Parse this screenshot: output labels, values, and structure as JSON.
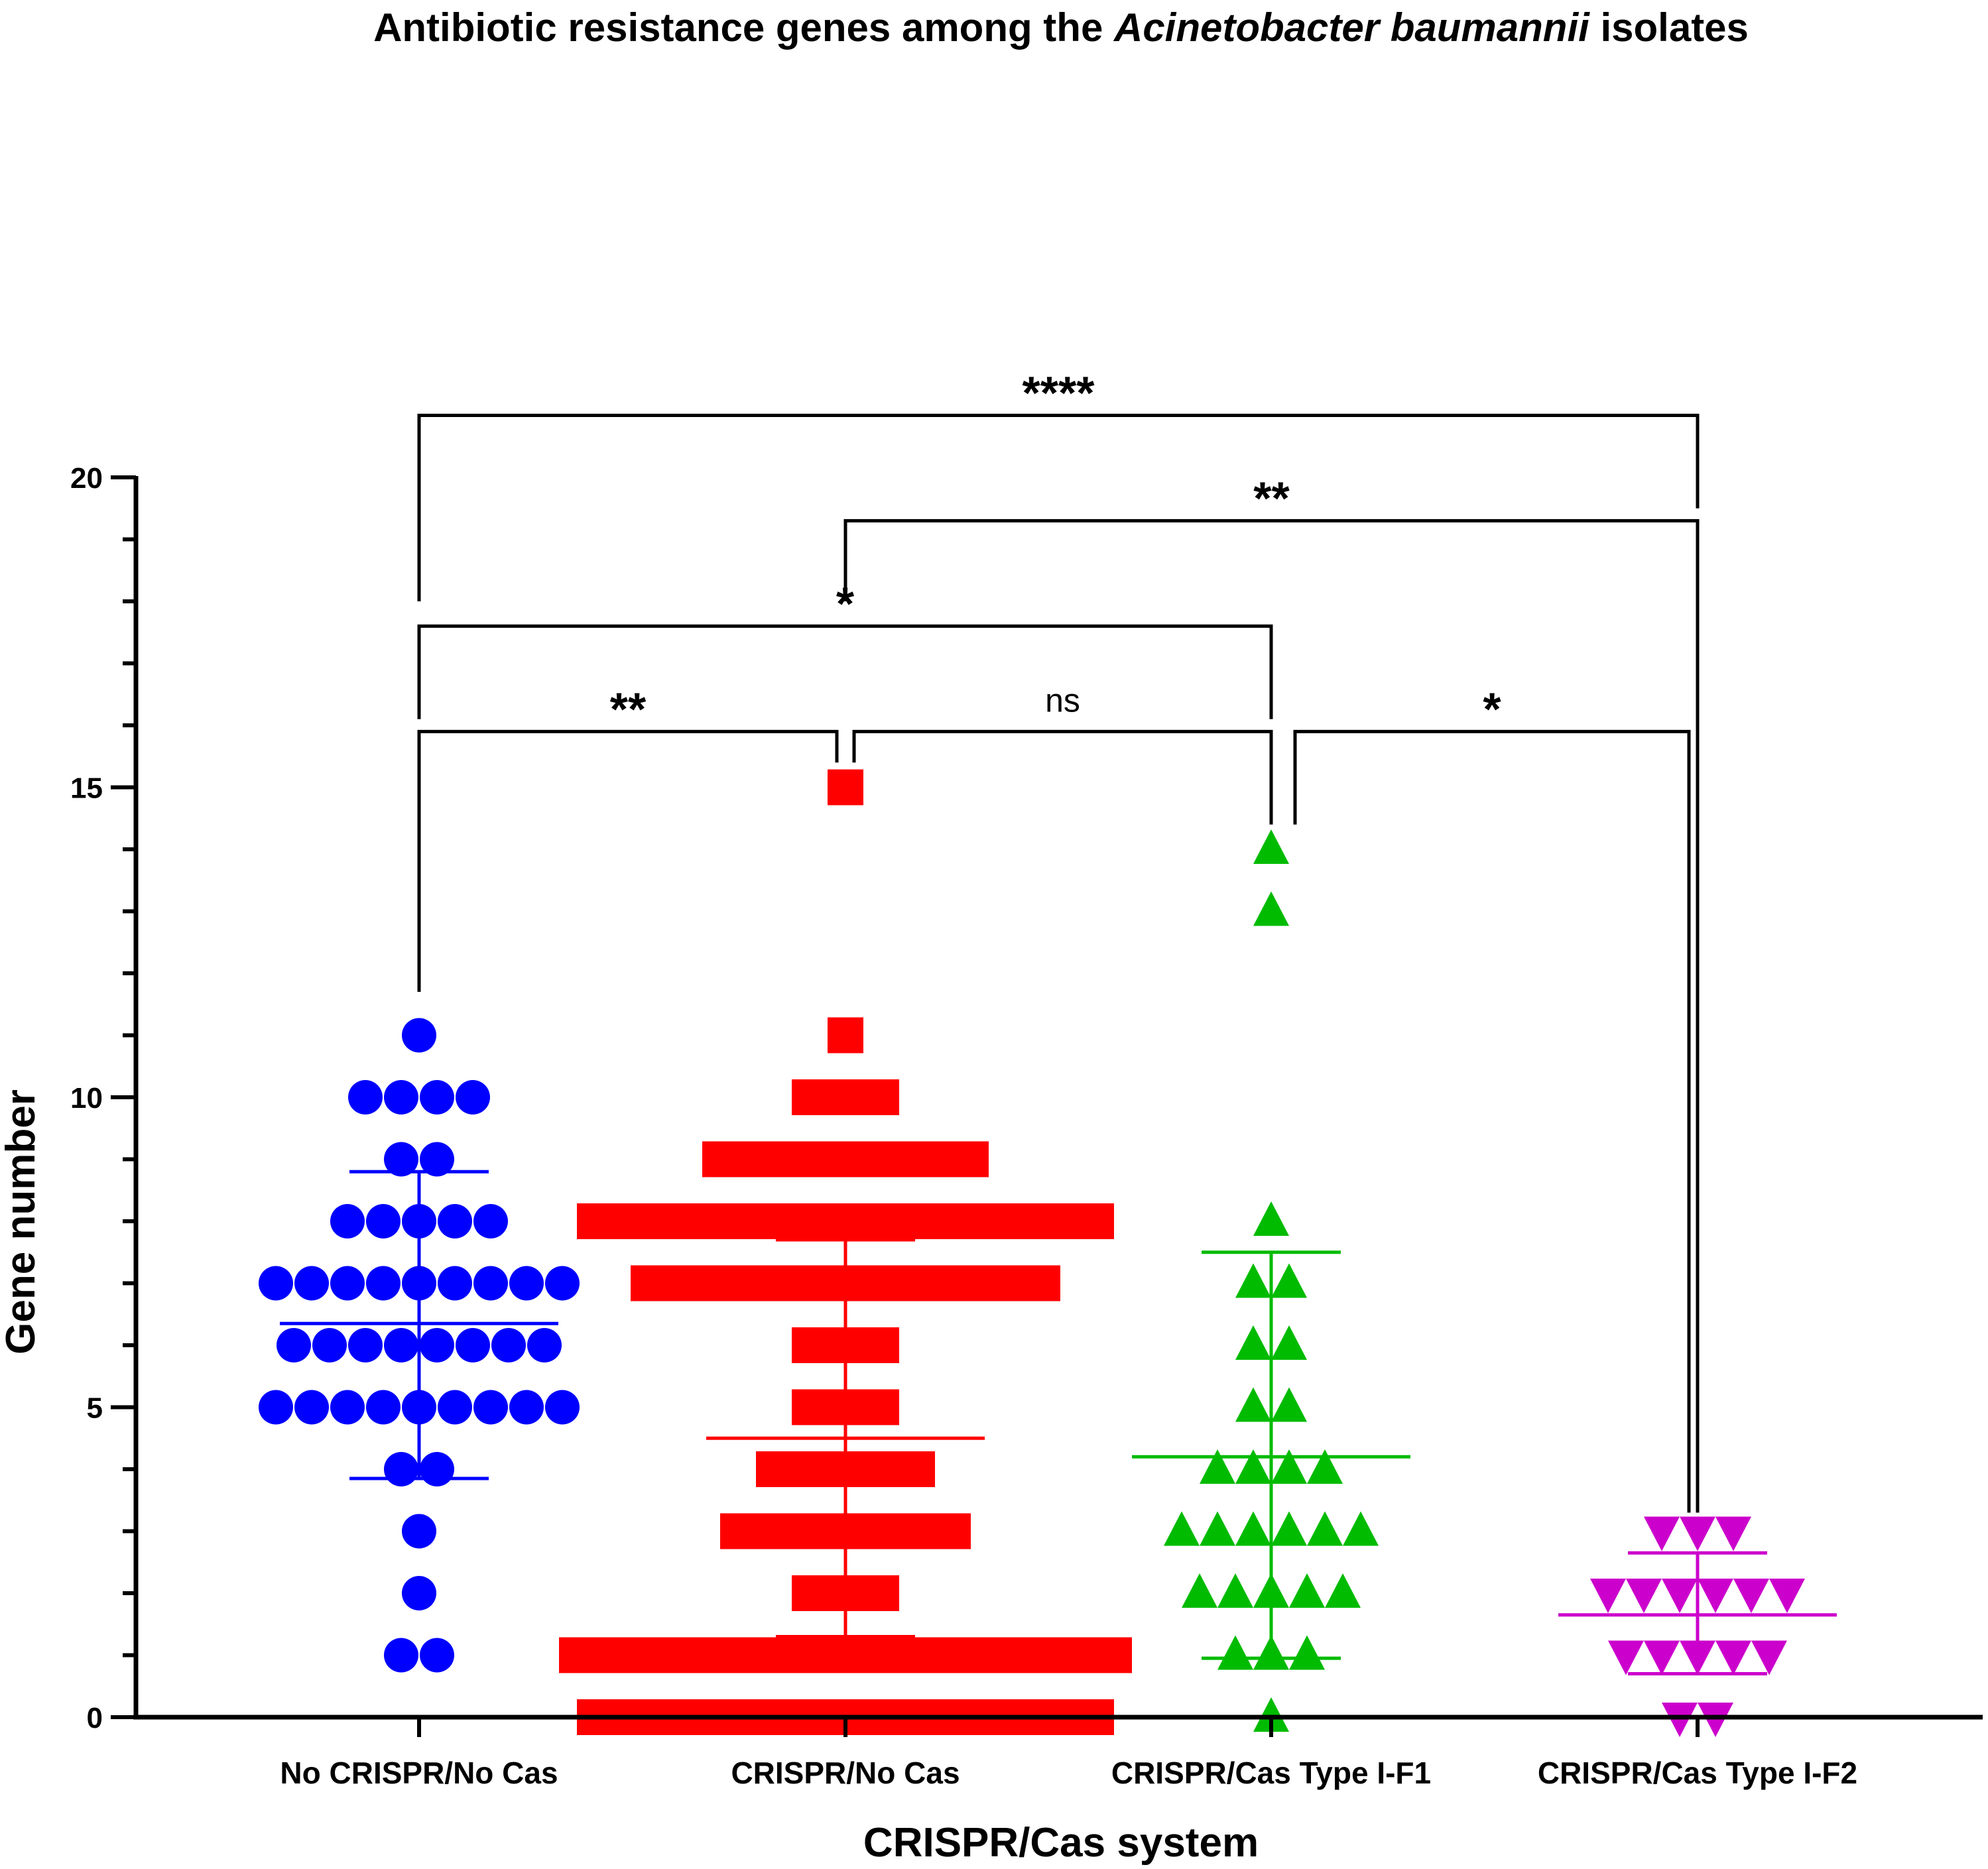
{
  "chart_data": {
    "type": "scatter",
    "title": {
      "before": "Antibiotic resistance genes among the ",
      "italic": "Acinetobacter baumannii",
      "after": " isolates"
    },
    "xlabel": "CRISPR/Cas system",
    "ylabel": "Gene number",
    "ylim": [
      0,
      20
    ],
    "yticks": [
      "0",
      "5",
      "10",
      "15",
      "20"
    ],
    "categories": [
      "No CRISPR/No Cas",
      "CRISPR/No Cas",
      "CRISPR/Cas Type I-F1",
      "CRISPR/Cas Type I-F2"
    ],
    "series": [
      {
        "name": "No CRISPR/No Cas",
        "color": "#0000ff",
        "marker": "circle",
        "mean": 6.35,
        "sd_low": 3.85,
        "sd_high": 8.8,
        "counts": {
          "1": 2,
          "2": 1,
          "3": 1,
          "4": 2,
          "5": 9,
          "6": 8,
          "7": 9,
          "8": 5,
          "9": 2,
          "10": 4,
          "11": 1
        }
      },
      {
        "name": "CRISPR/No Cas",
        "color": "#ff0000",
        "marker": "square",
        "mean": 4.5,
        "sd_low": 1.3,
        "sd_high": 7.7,
        "counts": {
          "0": 15,
          "1": 16,
          "2": 3,
          "3": 7,
          "4": 5,
          "5": 3,
          "6": 3,
          "7": 12,
          "8": 15,
          "9": 8,
          "10": 3,
          "11": 1,
          "15": 1
        }
      },
      {
        "name": "CRISPR/Cas Type I-F1",
        "color": "#00bb00",
        "marker": "triangle-up",
        "mean": 4.2,
        "sd_low": 0.95,
        "sd_high": 7.5,
        "counts": {
          "0": 1,
          "1": 3,
          "2": 5,
          "3": 6,
          "4": 4,
          "5": 2,
          "6": 2,
          "7": 2,
          "8": 1,
          "13": 1,
          "14": 1
        }
      },
      {
        "name": "CRISPR/Cas Type I-F2",
        "color": "#cc00cc",
        "marker": "triangle-down",
        "mean": 1.65,
        "sd_low": 0.7,
        "sd_high": 2.65,
        "counts": {
          "0": 2,
          "1": 5,
          "2": 6,
          "3": 3
        }
      }
    ],
    "comparisons": [
      {
        "from": 0,
        "to": 1,
        "label": "**",
        "y": 15.9
      },
      {
        "from": 1,
        "to": 2,
        "label": "ns",
        "y": 15.9
      },
      {
        "from": 2,
        "to": 3,
        "label": "*",
        "y": 15.9
      },
      {
        "from": 0,
        "to": 2,
        "label": "*",
        "y": 17.6
      },
      {
        "from": 1,
        "to": 3,
        "label": "**",
        "y": 19.3
      },
      {
        "from": 0,
        "to": 3,
        "label": "****",
        "y": 21.0
      }
    ]
  }
}
